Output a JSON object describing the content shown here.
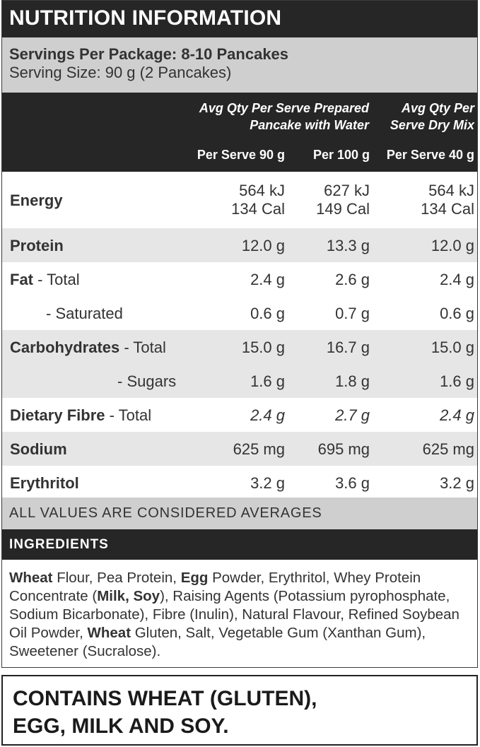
{
  "title": "NUTRITION INFORMATION",
  "servings": {
    "per_package": "Servings Per Package: 8-10 Pancakes",
    "serving_size": "Serving Size: 90 g (2 Pancakes)"
  },
  "columns": {
    "prepared_heading_line1": "Avg Qty Per Serve Prepared",
    "prepared_heading_line2": "Pancake with Water",
    "dry_heading_line1": "Avg Qty Per",
    "dry_heading_line2": "Serve Dry Mix",
    "col1": "Per Serve 90 g",
    "col2": "Per 100 g",
    "col3": "Per Serve 40 g"
  },
  "rows": {
    "energy": {
      "label": "Energy",
      "c1a": "564 kJ",
      "c1b": "134 Cal",
      "c2a": "627 kJ",
      "c2b": "149 Cal",
      "c3a": "564 kJ",
      "c3b": "134 Cal"
    },
    "protein": {
      "label": "Protein",
      "c1": "12.0 g",
      "c2": "13.3 g",
      "c3": "12.0 g"
    },
    "fat_total": {
      "label": "Fat",
      "suffix": " - Total",
      "c1": "2.4 g",
      "c2": "2.6 g",
      "c3": "2.4 g"
    },
    "fat_saturated": {
      "label": "- Saturated",
      "c1": "0.6 g",
      "c2": "0.7 g",
      "c3": "0.6 g"
    },
    "carbs_total": {
      "label": "Carbohydrates",
      "suffix": " - Total",
      "c1": "15.0 g",
      "c2": "16.7 g",
      "c3": "15.0 g"
    },
    "carbs_sugars": {
      "label": "- Sugars",
      "c1": "1.6 g",
      "c2": "1.8 g",
      "c3": "1.6 g"
    },
    "fibre": {
      "label": "Dietary Fibre",
      "suffix": " - Total",
      "c1": "2.4 g",
      "c2": "2.7 g",
      "c3": "2.4 g"
    },
    "sodium": {
      "label": "Sodium",
      "c1": "625 mg",
      "c2": "695 mg",
      "c3": "625 mg"
    },
    "erythritol": {
      "label": "Erythritol",
      "c1": "3.2 g",
      "c2": "3.6 g",
      "c3": "3.2 g"
    }
  },
  "averages_note": "ALL VALUES ARE CONSIDERED AVERAGES",
  "ingredients": {
    "heading": "INGREDIENTS",
    "parts": [
      "Wheat",
      " Flour, Pea Protein, ",
      "Egg",
      " Powder, Erythritol, Whey Protein Concentrate (",
      "Milk, Soy",
      "), Raising Agents (Potassium pyrophosphate, Sodium Bicarbonate), Fibre (Inulin), Natural Flavour, Refined Soybean Oil Powder, ",
      "Wheat",
      " Gluten, Salt, Vegetable Gum (Xanthan Gum), Sweetener (Sucralose)."
    ]
  },
  "allergen": {
    "line1": "CONTAINS WHEAT (GLUTEN),",
    "line2": "EGG, MILK AND SOY."
  }
}
